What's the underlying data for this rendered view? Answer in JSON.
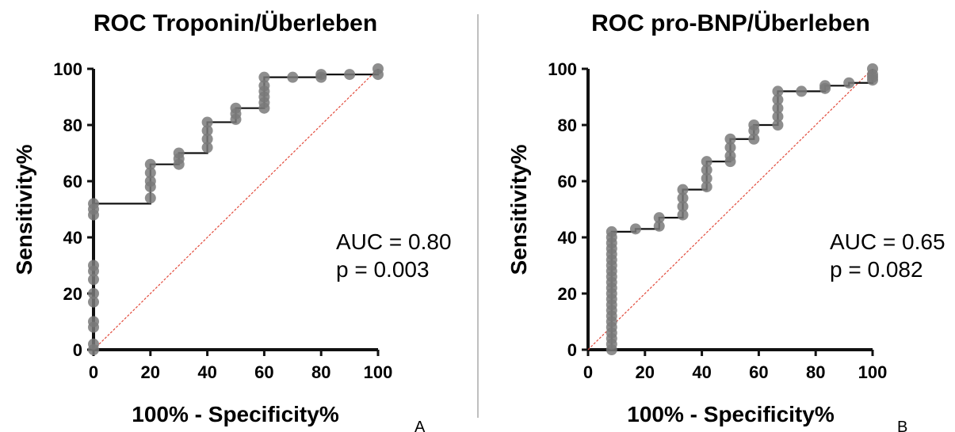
{
  "chart_data": [
    {
      "type": "line",
      "title": "ROC Troponin/Überleben",
      "xlabel": "100% - Specificity%",
      "ylabel": "Sensitivity%",
      "xlim": [
        0,
        100
      ],
      "ylim": [
        0,
        100
      ],
      "xticks": [
        "0",
        "20",
        "40",
        "60",
        "80",
        "100"
      ],
      "yticks": [
        "0",
        "20",
        "40",
        "60",
        "80",
        "100"
      ],
      "series": [
        {
          "values": [
            [
              0,
              0
            ],
            [
              0,
              2
            ],
            [
              0,
              8
            ],
            [
              0,
              10
            ],
            [
              0,
              17
            ],
            [
              0,
              20
            ],
            [
              0,
              25
            ],
            [
              0,
              28
            ],
            [
              0,
              30
            ],
            [
              0,
              48
            ],
            [
              0,
              50
            ],
            [
              0,
              52
            ],
            [
              20,
              54
            ],
            [
              20,
              58
            ],
            [
              20,
              60
            ],
            [
              20,
              63
            ],
            [
              20,
              66
            ],
            [
              30,
              66
            ],
            [
              30,
              68
            ],
            [
              30,
              70
            ],
            [
              40,
              72
            ],
            [
              40,
              75
            ],
            [
              40,
              78
            ],
            [
              40,
              81
            ],
            [
              50,
              82
            ],
            [
              50,
              84
            ],
            [
              50,
              86
            ],
            [
              60,
              86
            ],
            [
              60,
              88
            ],
            [
              60,
              90
            ],
            [
              60,
              92
            ],
            [
              60,
              94
            ],
            [
              60,
              97
            ],
            [
              70,
              97
            ],
            [
              80,
              97
            ],
            [
              80,
              98
            ],
            [
              90,
              98
            ],
            [
              100,
              98
            ],
            [
              100,
              100
            ]
          ]
        },
        {
          "values": [
            [
              0,
              0
            ],
            [
              100,
              100
            ]
          ]
        }
      ],
      "annotations": [
        "AUC = 0.80",
        "p = 0.003"
      ],
      "panel_label": "A"
    },
    {
      "type": "line",
      "title": "ROC pro-BNP/Überleben",
      "xlabel": "100% - Specificity%",
      "ylabel": "Sensitivity%",
      "xlim": [
        0,
        100
      ],
      "ylim": [
        0,
        100
      ],
      "xticks": [
        "0",
        "20",
        "40",
        "60",
        "80",
        "100"
      ],
      "yticks": [
        "0",
        "20",
        "40",
        "60",
        "80",
        "100"
      ],
      "series": [
        {
          "values": [
            [
              8.3,
              0
            ],
            [
              8.3,
              2
            ],
            [
              8.3,
              4
            ],
            [
              8.3,
              6
            ],
            [
              8.3,
              8
            ],
            [
              8.3,
              10
            ],
            [
              8.3,
              12
            ],
            [
              8.3,
              14
            ],
            [
              8.3,
              16
            ],
            [
              8.3,
              18
            ],
            [
              8.3,
              20
            ],
            [
              8.3,
              22
            ],
            [
              8.3,
              24
            ],
            [
              8.3,
              26
            ],
            [
              8.3,
              28
            ],
            [
              8.3,
              30
            ],
            [
              8.3,
              32
            ],
            [
              8.3,
              34
            ],
            [
              8.3,
              36
            ],
            [
              8.3,
              38
            ],
            [
              8.3,
              40
            ],
            [
              8.3,
              42
            ],
            [
              16.7,
              43
            ],
            [
              25,
              44
            ],
            [
              25,
              47
            ],
            [
              33.3,
              48
            ],
            [
              33.3,
              51
            ],
            [
              33.3,
              54
            ],
            [
              33.3,
              57
            ],
            [
              41.7,
              58
            ],
            [
              41.7,
              61
            ],
            [
              41.7,
              64
            ],
            [
              41.7,
              67
            ],
            [
              50,
              67
            ],
            [
              50,
              69
            ],
            [
              50,
              72
            ],
            [
              50,
              75
            ],
            [
              58.3,
              75
            ],
            [
              58.3,
              78
            ],
            [
              58.3,
              80
            ],
            [
              66.7,
              80
            ],
            [
              66.7,
              83
            ],
            [
              66.7,
              86
            ],
            [
              66.7,
              89
            ],
            [
              66.7,
              92
            ],
            [
              75,
              92
            ],
            [
              83.3,
              93
            ],
            [
              83.3,
              94
            ],
            [
              91.7,
              95
            ],
            [
              100,
              96
            ],
            [
              100,
              97
            ],
            [
              100,
              98
            ],
            [
              100,
              100
            ]
          ]
        },
        {
          "values": [
            [
              0,
              0
            ],
            [
              100,
              100
            ]
          ]
        }
      ],
      "annotations": [
        "AUC = 0.65",
        "p = 0.082"
      ],
      "panel_label": "B"
    }
  ],
  "colors": {
    "curve": "#111111",
    "point": "#7a7a7a",
    "reference_line": "#e24a3b",
    "divider": "#bfbfbf"
  }
}
